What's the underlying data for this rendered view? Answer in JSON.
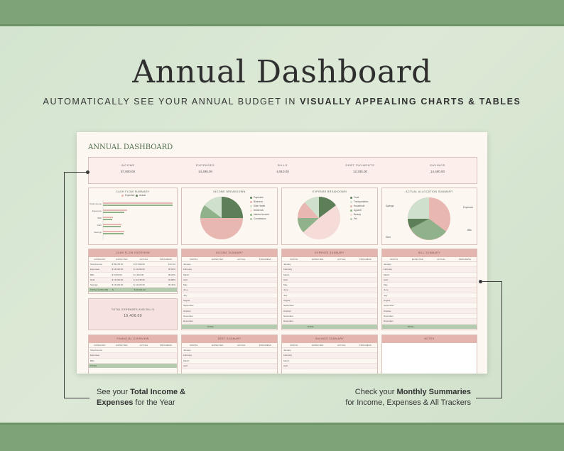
{
  "hero": {
    "title": "Annual Dashboard",
    "sub_plain": "AUTOMATICALLY SEE YOUR ANNUAL BUDGET IN ",
    "sub_bold": "VISUALLY APPEALING CHARTS & TABLES"
  },
  "dashboard": {
    "title": "ANNUAL DASHBOARD",
    "kpis": [
      {
        "label": "INCOME",
        "value": "57,900.00"
      },
      {
        "label": "EXPENSES",
        "value": "14,496.00"
      },
      {
        "label": "BILLS",
        "value": "4,910.00"
      },
      {
        "label": "DEBT PAYMENTS",
        "value": "12,335.00"
      },
      {
        "label": "SAVINGS",
        "value": "14,460.00"
      }
    ],
    "charts": {
      "cashflow": {
        "title": "CASH FLOW SUMMARY",
        "legend": [
          "Expected",
          "Actual"
        ],
        "rows": [
          "Total Income",
          "Expenses",
          "Bills",
          "Debt",
          "Savings"
        ]
      },
      "income": {
        "title": "INCOME BREAKDOWN",
        "legend": [
          "Paycheck",
          "Business",
          "Side Hustle",
          "Dividends",
          "Interest Income",
          "Commission"
        ]
      },
      "expense": {
        "title": "EXPENSE BREAKDOWN",
        "legend": [
          "Food",
          "Transportation",
          "Household",
          "Apparel",
          "Beauty",
          "Pet"
        ]
      },
      "allocation": {
        "title": "ACTUAL ALLOCATION SUMMARY",
        "labels": [
          "Savings",
          "Expenses",
          "Bills",
          "Debt"
        ]
      }
    },
    "tables": {
      "cashflow_overview": {
        "title": "CASH FLOW OVERVIEW",
        "cols": [
          "CATEGORY",
          "EXPECTED",
          "ACTUAL",
          "PROGRESS"
        ],
        "rows": [
          [
            "Total Income",
            "$ 56,975.00",
            "$ 57,900.00",
            "101.6%"
          ],
          [
            "Expenses",
            "$ 16,000.00",
            "$ 14,496.00",
            "90.60%"
          ],
          [
            "Bills",
            "$ 5,000.00",
            "$ 4,910.00",
            "98.20%"
          ],
          [
            "Debt",
            "$ 13,000.00",
            "$ 12,335.00",
            "94.88%"
          ],
          [
            "Savings",
            "$ 15,000.00",
            "$ 14,460.00",
            "96.40%"
          ]
        ],
        "total": [
          "TOTAL OUTFLOW",
          "$",
          "$ 46,201.00",
          ""
        ]
      },
      "total_box": {
        "title": "TOTAL EXPENSES AND BILLS",
        "value": "19,406.00"
      },
      "income_summary": {
        "title": "INCOME SUMMARY",
        "months": [
          "January",
          "February",
          "March",
          "April",
          "May",
          "June",
          "July",
          "August",
          "September",
          "October",
          "November",
          "December"
        ],
        "total": "TOTAL"
      },
      "expense_summary": {
        "title": "EXPENSE SUMMARY"
      },
      "bill_summary": {
        "title": "BILL SUMMARY"
      },
      "financial_overview": {
        "title": "FINANCIAL OVERVIEW",
        "rows": [
          "Total Income",
          "Expenses",
          "Bills"
        ],
        "total": "TOTAL"
      },
      "debt_summary": {
        "title": "DEBT SUMMARY",
        "months": [
          "January",
          "February",
          "March",
          "April",
          "May"
        ]
      },
      "savings_summary": {
        "title": "SAVINGS SUMMARY"
      },
      "notes": {
        "title": "NOTES"
      }
    }
  },
  "callouts": {
    "left": {
      "line1_a": "See your ",
      "line1_b": "Total Income &",
      "line2_b": "Expenses",
      "line2_c": " for the Year"
    },
    "right": {
      "line1_a": "Check your ",
      "line1_b": "Monthly Summaries",
      "line2": "for Income, Expenses & All Trackers"
    }
  },
  "colors": {
    "green_band": "#7fa378",
    "pink_header": "#e4b4ae",
    "dark_green": "#5c7f58",
    "mid_green": "#8fb28a",
    "pale_green": "#cfe0cc",
    "pink": "#e8b7b2",
    "pale_pink": "#f6dcd8"
  }
}
